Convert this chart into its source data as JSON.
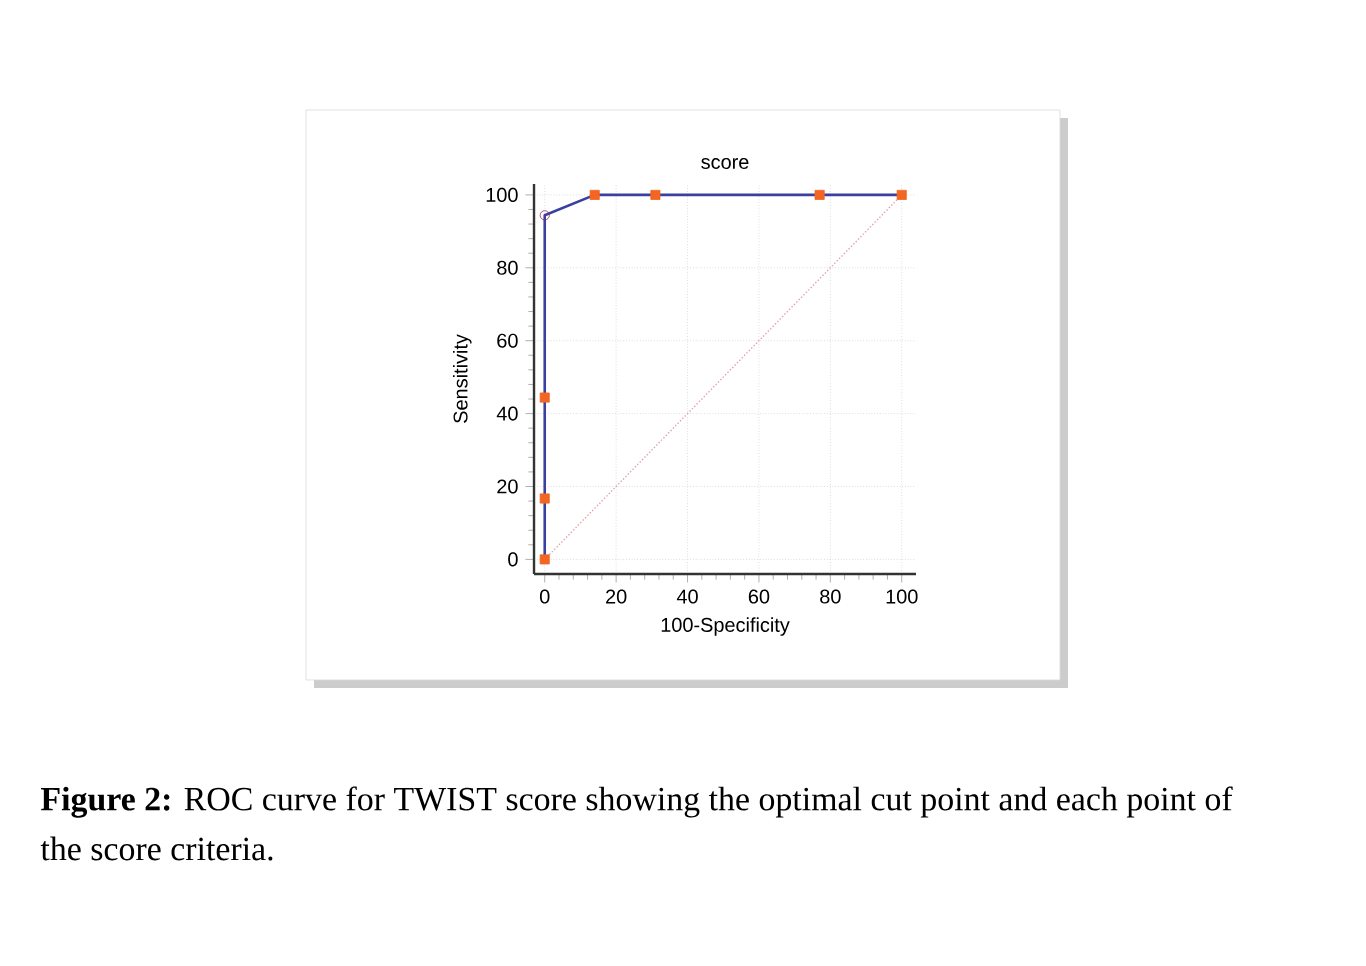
{
  "chart_data": {
    "type": "line",
    "title": "score",
    "xlabel": "100-Specificity",
    "ylabel": "Sensitivity",
    "xlim": [
      -3,
      104
    ],
    "ylim": [
      -4,
      103
    ],
    "xticks": [
      0,
      20,
      40,
      60,
      80,
      100
    ],
    "yticks": [
      0,
      20,
      40,
      60,
      80,
      100
    ],
    "grid": true,
    "series": [
      {
        "color": "#3b3fa0",
        "marker": "none",
        "x": [
          0,
          0,
          0,
          0,
          14,
          31,
          77,
          100
        ],
        "values": [
          0,
          16.7,
          44.4,
          94.4,
          100,
          100,
          100,
          100
        ]
      },
      {
        "type": "line",
        "color": "#e0a0a8",
        "marker": "none",
        "line_style": "dotted",
        "x": [
          0,
          100
        ],
        "values": [
          0,
          100
        ]
      },
      {
        "type": "scatter",
        "color": "#f26522",
        "marker": "square",
        "x": [
          0,
          0,
          0,
          14,
          31,
          77,
          100
        ],
        "values": [
          0,
          16.7,
          44.4,
          100,
          100,
          100,
          100
        ]
      },
      {
        "type": "scatter",
        "color": "#8b3050",
        "marker": "circle",
        "x": [
          0
        ],
        "values": [
          94.4
        ]
      }
    ],
    "annotations": [
      "**Figure 2:** ROC curve for TWIST score showing the optimal cut point and each point of the score criteria."
    ]
  }
}
